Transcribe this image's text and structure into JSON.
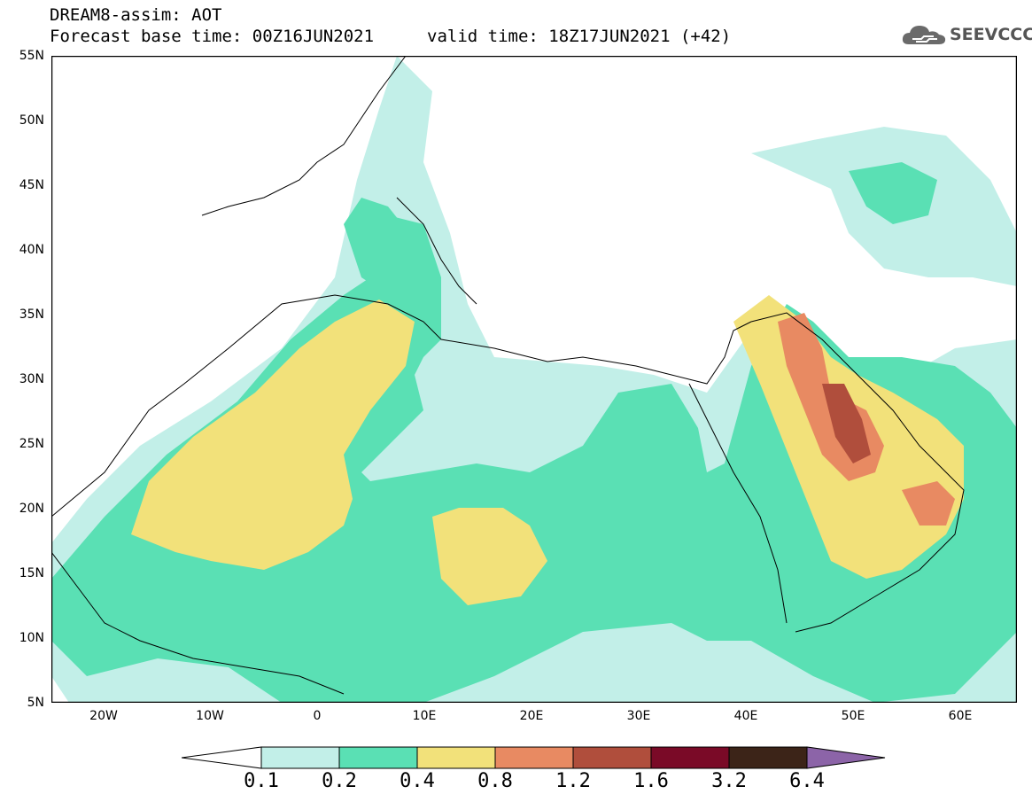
{
  "header": {
    "title": "DREAM8-assim: AOT",
    "base_time": "Forecast base time: 00Z16JUN2021",
    "valid_time": "valid time: 18Z17JUN2021 (+42)",
    "logo_text": "SEEVCCC"
  },
  "map": {
    "lat_labels": [
      "55N",
      "50N",
      "45N",
      "40N",
      "35N",
      "30N",
      "25N",
      "20N",
      "15N",
      "10N",
      "5N"
    ],
    "lon_labels": [
      "20W",
      "10W",
      "0",
      "10E",
      "20E",
      "30E",
      "40E",
      "50E",
      "60E"
    ]
  },
  "legend": {
    "labels": [
      "0.1",
      "0.2",
      "0.4",
      "0.8",
      "1.2",
      "1.6",
      "3.2",
      "6.4"
    ],
    "colors": [
      "#ffffff",
      "#c2efe8",
      "#5ae0b4",
      "#f2e17a",
      "#e88a62",
      "#b04e3c",
      "#7a0a27",
      "#3c2418",
      "#8c64a8"
    ]
  }
}
